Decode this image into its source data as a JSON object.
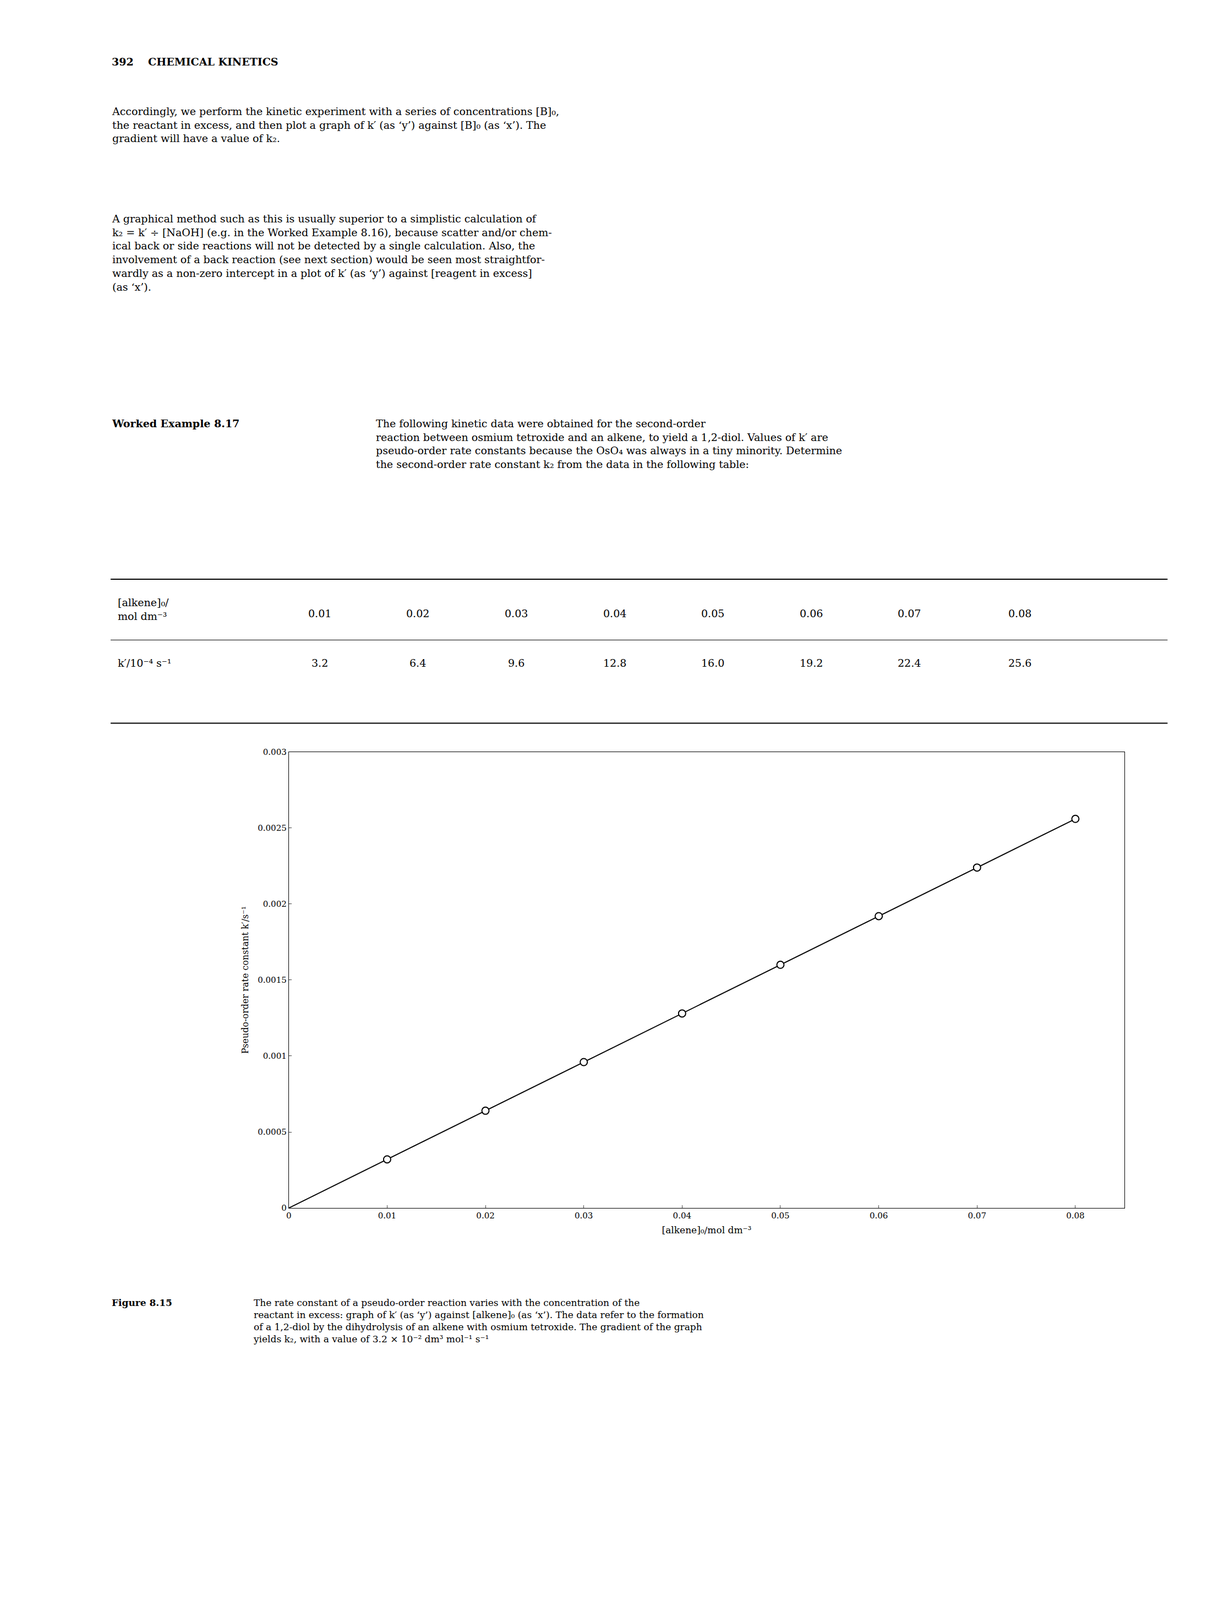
{
  "chart_data": [
    {
      "type": "table",
      "series": [
        {
          "name": "[alkene]₀/\nmol dm⁻³",
          "values": [
            0.01,
            0.02,
            0.03,
            0.04,
            0.05,
            0.06,
            0.07,
            0.08
          ]
        },
        {
          "name": "k′/10⁻⁴ s⁻¹",
          "values": [
            3.2,
            6.4,
            9.6,
            12.8,
            16.0,
            19.2,
            22.4,
            25.6
          ],
          "value_labels": [
            "3.2",
            "6.4",
            "9.6",
            "12.8",
            "16.0",
            "19.2",
            "22.4",
            "25.6"
          ]
        }
      ]
    },
    {
      "type": "line",
      "xlabel": "[alkene]₀/mol dm⁻³",
      "ylabel": "Pseudo-order rate constant k′/s⁻¹",
      "xlim": [
        0,
        0.085
      ],
      "ylim": [
        0,
        0.003
      ],
      "xticks": [
        0,
        0.01,
        0.02,
        0.03,
        0.04,
        0.05,
        0.06,
        0.07,
        0.08
      ],
      "yticks": [
        0,
        0.0005,
        0.001,
        0.0015,
        0.002,
        0.0025,
        0.003
      ],
      "grid": false,
      "series": [
        {
          "type": "line",
          "color": "#000000",
          "x": [
            0,
            0.01,
            0.02,
            0.03,
            0.04,
            0.05,
            0.06,
            0.07,
            0.08
          ],
          "values": [
            0,
            0.00032,
            0.00064,
            0.00096,
            0.00128,
            0.0016,
            0.00192,
            0.00224,
            0.00256
          ]
        },
        {
          "type": "scatter",
          "color": "#000000",
          "marker": "open circle",
          "x": [
            0.01,
            0.02,
            0.03,
            0.04,
            0.05,
            0.06,
            0.07,
            0.08
          ],
          "values": [
            0.00032,
            0.00064,
            0.00096,
            0.00128,
            0.0016,
            0.00192,
            0.00224,
            0.00256
          ]
        }
      ],
      "annotations": [
        "392    CHEMICAL KINETICS",
        "Accordingly, we perform the kinetic experiment with a series of concentrations [B]₀,\nthe reactant in excess, and then plot a graph of k′ (as ‘y’) against [B]₀ (as ‘x’). The\ngradient will have a value of k₂.",
        "A graphical method such as this is usually superior to a simplistic calculation of\nk₂ = k′ ÷ [NaOH] (e.g. in the Worked Example 8.16), because scatter and/or chem-\nical back or side reactions will not be detected by a single calculation. Also, the\ninvolvement of a back reaction (see next section) would be seen most straightfor-\nwardly as a non-zero intercept in a plot of k′ (as ‘y’) against [reagent in excess]\n(as ‘x’).",
        "Worked Example 8.17",
        "The following kinetic data were obtained for the second-order\nreaction between osmium tetroxide and an alkene, to yield a 1,2-diol. Values of k′ are\npseudo-order rate constants because the OsO₄ was always in a tiny minority. Determine\nthe second-order rate constant k₂ from the data in the following table:",
        "Figure 8.15",
        "The rate constant of a pseudo-order reaction varies with the concentration of the\nreactant in excess: graph of k′ (as ‘y’) against [alkene]₀ (as ‘x’). The data refer to the formation\nof a 1,2-diol by the dihydrolysis of an alkene with osmium tetroxide. The gradient of the graph\nyields k₂, with a value of 3.2 × 10⁻² dm³ mol⁻¹ s⁻¹"
      ]
    }
  ]
}
